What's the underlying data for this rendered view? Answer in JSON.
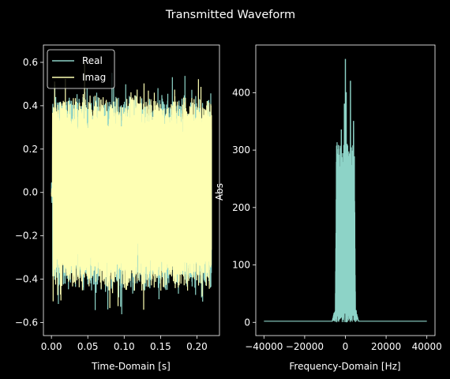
{
  "figure": {
    "title": "Transmitted Waveform",
    "background": "#000000",
    "foreground": "#ffffff"
  },
  "chart_data": [
    {
      "type": "line",
      "xlabel": "Time-Domain [s]",
      "ylabel": "",
      "xlim": [
        -0.011,
        0.231
      ],
      "ylim": [
        -0.66,
        0.68
      ],
      "xticks": [
        0.0,
        0.05,
        0.1,
        0.15,
        0.2
      ],
      "xtick_labels": [
        "0.00",
        "0.05",
        "0.10",
        "0.15",
        "0.20"
      ],
      "yticks": [
        -0.6,
        -0.4,
        -0.2,
        0.0,
        0.2,
        0.4,
        0.6
      ],
      "ytick_labels": [
        "−0.6",
        "−0.4",
        "−0.2",
        "0.0",
        "0.2",
        "0.4",
        "0.6"
      ],
      "x_range": [
        0.0,
        0.22
      ],
      "legend": "top-left",
      "series": [
        {
          "name": "Real",
          "color": "#8dd3c7",
          "typical_amplitude": 0.42,
          "peak_max": 0.62,
          "peak_min": -0.64
        },
        {
          "name": "Imag",
          "color": "#feffb3",
          "typical_amplitude": 0.42,
          "peak_max": 0.6,
          "peak_min": -0.62
        }
      ]
    },
    {
      "type": "line",
      "xlabel": "Frequency-Domain [Hz]",
      "ylabel": "Abs",
      "xlim": [
        -44000,
        44000
      ],
      "ylim": [
        -23,
        483
      ],
      "xticks": [
        -40000,
        -20000,
        0,
        20000,
        40000
      ],
      "xtick_labels": [
        "−40000",
        "−20000",
        "0",
        "20000",
        "40000"
      ],
      "yticks": [
        0,
        100,
        200,
        300,
        400
      ],
      "ytick_labels": [
        "0",
        "100",
        "200",
        "300",
        "400"
      ],
      "x_range": [
        -40000,
        40000
      ],
      "series": [
        {
          "name": "",
          "color": "#8dd3c7",
          "band": [
            -5000,
            5000
          ],
          "band_level": 315,
          "peaks": [
            [
              -2000,
              335
            ],
            [
              -500,
              380
            ],
            [
              0,
              458
            ],
            [
              400,
              400
            ],
            [
              2500,
              420
            ],
            [
              4000,
              350
            ]
          ],
          "noise_floor": 2
        }
      ]
    }
  ]
}
